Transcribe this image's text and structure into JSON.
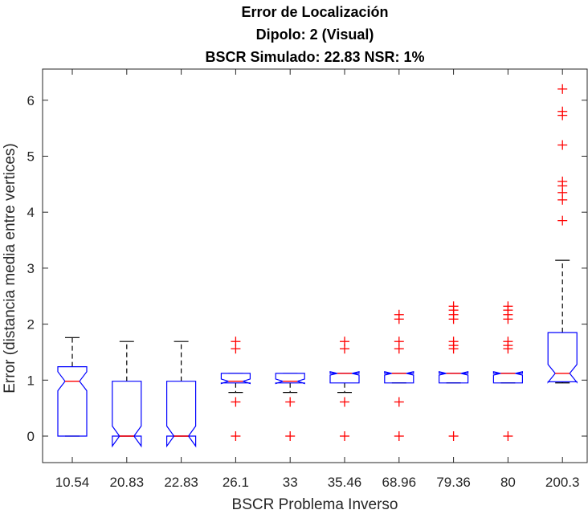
{
  "chart_data": {
    "type": "boxplot",
    "title_lines": [
      "Error de Localización",
      "Dipolo: 2 (Visual)",
      "BSCR Simulado: 22.83 NSR: 1%"
    ],
    "xlabel": "BSCR Problema Inverso",
    "ylabel": "Error (distancia media entre vertices)",
    "categories": [
      "10.54",
      "20.83",
      "22.83",
      "26.1",
      "33",
      "35.46",
      "68.96",
      "79.36",
      "80",
      "200.3"
    ],
    "ylim": [
      -0.45,
      6.55
    ],
    "yticks": [
      0,
      1,
      2,
      3,
      4,
      5,
      6
    ],
    "box_color": "#0000ff",
    "median_color": "#ff0000",
    "whisker_color": "#000000",
    "outlier_color": "#ff0000",
    "boxes": [
      {
        "q1": 0,
        "median": 0.98,
        "q3": 1.24,
        "notch_low": 0.81,
        "notch_high": 1.15,
        "whisker_low": 0,
        "whisker_high": 1.76,
        "outliers": []
      },
      {
        "q1": 0,
        "median": 0,
        "q3": 0.98,
        "notch_low": -0.18,
        "notch_high": 0.18,
        "whisker_low": 0,
        "whisker_high": 1.69,
        "outliers": []
      },
      {
        "q1": 0,
        "median": 0,
        "q3": 0.98,
        "notch_low": -0.18,
        "notch_high": 0.18,
        "whisker_low": 0,
        "whisker_high": 1.69,
        "outliers": []
      },
      {
        "q1": 0.95,
        "median": 0.98,
        "q3": 1.12,
        "notch_low": 0.94,
        "notch_high": 1.02,
        "whisker_low": 0.78,
        "whisker_high": 1.12,
        "outliers": [
          0,
          0.61,
          1.56,
          1.69
        ]
      },
      {
        "q1": 0.95,
        "median": 0.98,
        "q3": 1.12,
        "notch_low": 0.94,
        "notch_high": 1.02,
        "whisker_low": 0.78,
        "whisker_high": 1.12,
        "outliers": [
          0,
          0.61
        ]
      },
      {
        "q1": 0.95,
        "median": 1.12,
        "q3": 1.12,
        "notch_low": 1.09,
        "notch_high": 1.15,
        "whisker_low": 0.78,
        "whisker_high": 1.12,
        "outliers": [
          0,
          0.61,
          1.56,
          1.69
        ]
      },
      {
        "q1": 0.95,
        "median": 1.12,
        "q3": 1.12,
        "notch_low": 1.09,
        "notch_high": 1.15,
        "whisker_low": 0.95,
        "whisker_high": 1.12,
        "outliers": [
          0,
          0.61,
          1.56,
          1.69,
          2.09,
          2.17
        ]
      },
      {
        "q1": 0.95,
        "median": 1.12,
        "q3": 1.12,
        "notch_low": 1.09,
        "notch_high": 1.15,
        "whisker_low": 0.95,
        "whisker_high": 1.12,
        "outliers": [
          0,
          1.56,
          1.62,
          1.69,
          2.09,
          2.17,
          2.25,
          2.32
        ]
      },
      {
        "q1": 0.95,
        "median": 1.12,
        "q3": 1.12,
        "notch_low": 1.09,
        "notch_high": 1.15,
        "whisker_low": 0.95,
        "whisker_high": 1.12,
        "outliers": [
          0,
          1.56,
          1.62,
          1.69,
          2.09,
          2.17,
          2.25,
          2.32
        ]
      },
      {
        "q1": 0.97,
        "median": 1.12,
        "q3": 1.85,
        "notch_low": 0.96,
        "notch_high": 1.28,
        "whisker_low": 0.95,
        "whisker_high": 3.14,
        "outliers": [
          3.85,
          4.22,
          4.35,
          4.47,
          4.55,
          5.2,
          5.73,
          5.8,
          6.2
        ]
      }
    ]
  }
}
